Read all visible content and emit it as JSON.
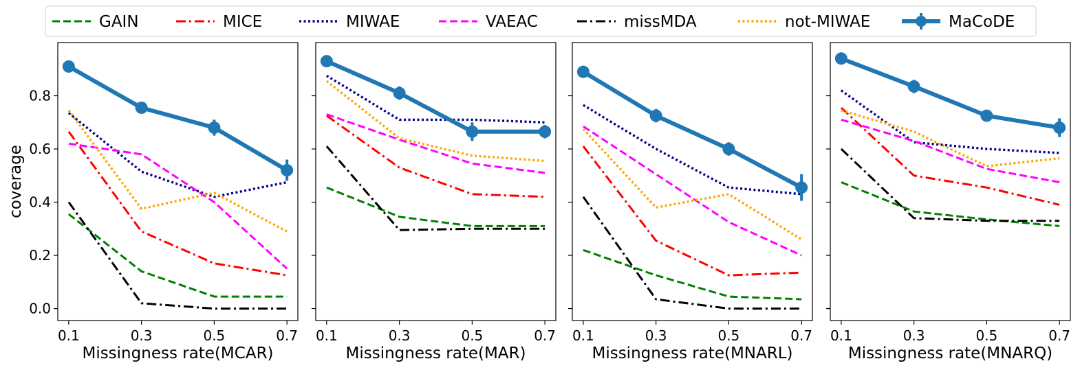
{
  "chart_data": {
    "type": "line",
    "ylabel": "coverage",
    "x": [
      0.1,
      0.3,
      0.5,
      0.7
    ],
    "x_ticks": [
      "0.1",
      "0.3",
      "0.5",
      "0.7"
    ],
    "y_ticks": [
      "0.0",
      "0.2",
      "0.4",
      "0.6",
      "0.8"
    ],
    "ylim": [
      -0.045,
      1.0
    ],
    "legend_position": "top, above panels",
    "legend": [
      {
        "name": "GAIN",
        "color": "#008000",
        "style": "dashed"
      },
      {
        "name": "MICE",
        "color": "#ff0000",
        "style": "dashdot"
      },
      {
        "name": "MIWAE",
        "color": "#00008b",
        "style": "dotted"
      },
      {
        "name": "VAEAC",
        "color": "#ff00ff",
        "style": "dashed"
      },
      {
        "name": "missMDA",
        "color": "#000000",
        "style": "dashdot"
      },
      {
        "name": "not-MIWAE",
        "color": "#ffa500",
        "style": "dotted"
      },
      {
        "name": "MaCoDE",
        "color": "#1f77b4",
        "style": "solid-errorbar"
      }
    ],
    "panels": [
      {
        "xlabel": "Missingness rate(MCAR)",
        "series": [
          {
            "name": "GAIN",
            "values": [
              0.355,
              0.14,
              0.045,
              0.045
            ]
          },
          {
            "name": "MICE",
            "values": [
              0.665,
              0.29,
              0.17,
              0.125
            ]
          },
          {
            "name": "MIWAE",
            "values": [
              0.735,
              0.515,
              0.42,
              0.475
            ]
          },
          {
            "name": "VAEAC",
            "values": [
              0.62,
              0.58,
              0.4,
              0.15
            ]
          },
          {
            "name": "missMDA",
            "values": [
              0.4,
              0.02,
              0.0,
              0.0
            ]
          },
          {
            "name": "not-MIWAE",
            "values": [
              0.745,
              0.375,
              0.435,
              0.29
            ]
          },
          {
            "name": "MaCoDE",
            "values": [
              0.91,
              0.755,
              0.68,
              0.52
            ],
            "errors": [
              0.008,
              0.01,
              0.03,
              0.04
            ]
          }
        ]
      },
      {
        "xlabel": "Missingness rate(MAR)",
        "series": [
          {
            "name": "GAIN",
            "values": [
              0.455,
              0.345,
              0.31,
              0.31
            ]
          },
          {
            "name": "MICE",
            "values": [
              0.725,
              0.53,
              0.43,
              0.42
            ]
          },
          {
            "name": "MIWAE",
            "values": [
              0.875,
              0.71,
              0.71,
              0.7
            ]
          },
          {
            "name": "VAEAC",
            "values": [
              0.73,
              0.635,
              0.545,
              0.51
            ]
          },
          {
            "name": "missMDA",
            "values": [
              0.61,
              0.295,
              0.3,
              0.3
            ]
          },
          {
            "name": "not-MIWAE",
            "values": [
              0.855,
              0.64,
              0.575,
              0.555
            ]
          },
          {
            "name": "MaCoDE",
            "values": [
              0.93,
              0.81,
              0.665,
              0.665
            ],
            "errors": [
              0.01,
              0.025,
              0.035,
              0.025
            ]
          }
        ]
      },
      {
        "xlabel": "Missingness rate(MNARL)",
        "series": [
          {
            "name": "GAIN",
            "values": [
              0.22,
              0.125,
              0.045,
              0.035
            ]
          },
          {
            "name": "MICE",
            "values": [
              0.61,
              0.255,
              0.125,
              0.135
            ]
          },
          {
            "name": "MIWAE",
            "values": [
              0.765,
              0.6,
              0.455,
              0.43
            ]
          },
          {
            "name": "VAEAC",
            "values": [
              0.685,
              0.505,
              0.325,
              0.2
            ]
          },
          {
            "name": "missMDA",
            "values": [
              0.42,
              0.035,
              0.0,
              0.0
            ]
          },
          {
            "name": "not-MIWAE",
            "values": [
              0.675,
              0.38,
              0.43,
              0.26
            ]
          },
          {
            "name": "MaCoDE",
            "values": [
              0.89,
              0.725,
              0.6,
              0.455
            ],
            "errors": [
              0.01,
              0.025,
              0.025,
              0.05
            ]
          }
        ]
      },
      {
        "xlabel": "Missingness rate(MNARQ)",
        "series": [
          {
            "name": "GAIN",
            "values": [
              0.475,
              0.365,
              0.335,
              0.31
            ]
          },
          {
            "name": "MICE",
            "values": [
              0.755,
              0.5,
              0.455,
              0.39
            ]
          },
          {
            "name": "MIWAE",
            "values": [
              0.82,
              0.625,
              0.6,
              0.585
            ]
          },
          {
            "name": "VAEAC",
            "values": [
              0.71,
              0.63,
              0.525,
              0.475
            ]
          },
          {
            "name": "missMDA",
            "values": [
              0.6,
              0.34,
              0.33,
              0.33
            ]
          },
          {
            "name": "not-MIWAE",
            "values": [
              0.745,
              0.665,
              0.535,
              0.565
            ]
          },
          {
            "name": "MaCoDE",
            "values": [
              0.94,
              0.835,
              0.725,
              0.68
            ],
            "errors": [
              0.01,
              0.025,
              0.01,
              0.035
            ]
          }
        ]
      }
    ]
  }
}
